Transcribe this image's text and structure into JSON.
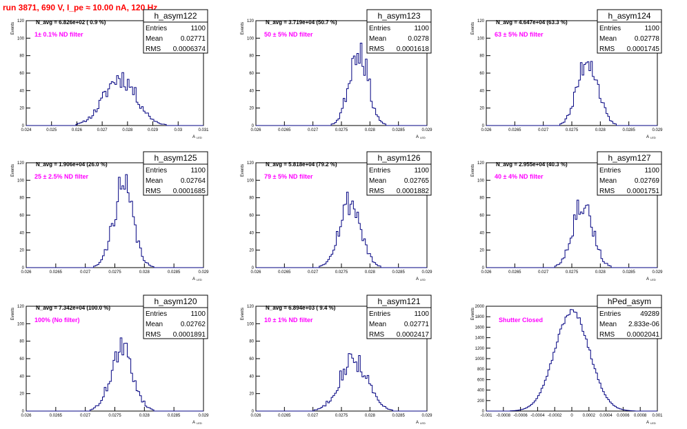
{
  "header": {
    "run_title": "run 3871,   690 V, I_pe ≈ 10.00 nA, 120 Hz"
  },
  "colors": {
    "title": "#ff0000",
    "histogram": "#000080",
    "annotation": "#ff00ff",
    "axis": "#000000"
  },
  "axis_labels": {
    "ylabel": "Events",
    "xlabel_main": "A",
    "xlabel_sub": "LED"
  },
  "chart_data": [
    {
      "type": "bar",
      "name": "h_asym122",
      "nlabel": "N_avg = 6.826e+02 ( 0.9 %)",
      "filter": "1± 0.1% ND filter",
      "stats": [
        [
          "Entries",
          "1100"
        ],
        [
          "Mean",
          "0.02771"
        ],
        [
          "RMS",
          "0.0006374"
        ]
      ],
      "xlim": [
        0.024,
        0.031
      ],
      "xticks": [
        "0.024",
        "0.025",
        "0.026",
        "0.027",
        "0.028",
        "0.029",
        "0.03",
        "0.031"
      ],
      "ylim": [
        0,
        120
      ],
      "yticks": [
        "0",
        "20",
        "40",
        "60",
        "80",
        "100",
        "120"
      ],
      "mean": 0.02771,
      "rms": 0.0006374,
      "peak": 55,
      "seed": 11
    },
    {
      "type": "bar",
      "name": "h_asym123",
      "nlabel": "N_avg = 3.719e+04 (50.7 %)",
      "filter": "50 ± 5% ND filter",
      "stats": [
        [
          "Entries",
          "1100"
        ],
        [
          "Mean",
          "0.0278"
        ],
        [
          "RMS",
          "0.0001618"
        ]
      ],
      "xlim": [
        0.026,
        0.029
      ],
      "xticks": [
        "0.026",
        "0.0265",
        "0.027",
        "0.0275",
        "0.028",
        "0.0285",
        "0.029"
      ],
      "ylim": [
        0,
        120
      ],
      "yticks": [
        "0",
        "20",
        "40",
        "60",
        "80",
        "100",
        "120"
      ],
      "mean": 0.0278,
      "rms": 0.0001618,
      "peak": 90,
      "seed": 23
    },
    {
      "type": "bar",
      "name": "h_asym124",
      "nlabel": "N_avg = 4.647e+04 (63.3 %)",
      "filter": "63 ± 5% ND filter",
      "stats": [
        [
          "Entries",
          "1100"
        ],
        [
          "Mean",
          "0.02778"
        ],
        [
          "RMS",
          "0.0001745"
        ]
      ],
      "xlim": [
        0.026,
        0.029
      ],
      "xticks": [
        "0.026",
        "0.0265",
        "0.027",
        "0.0275",
        "0.028",
        "0.0285",
        "0.029"
      ],
      "ylim": [
        0,
        120
      ],
      "yticks": [
        "0",
        "20",
        "40",
        "60",
        "80",
        "100",
        "120"
      ],
      "mean": 0.02778,
      "rms": 0.0001745,
      "peak": 78,
      "seed": 37
    },
    {
      "type": "bar",
      "name": "h_asym125",
      "nlabel": "N_avg = 1.906e+04 (26.0 %)",
      "filter": "25 ± 2.5% ND filter",
      "stats": [
        [
          "Entries",
          "1100"
        ],
        [
          "Mean",
          "0.02764"
        ],
        [
          "RMS",
          "0.0001685"
        ]
      ],
      "xlim": [
        0.026,
        0.029
      ],
      "xticks": [
        "0.026",
        "0.0265",
        "0.027",
        "0.0275",
        "0.028",
        "0.0285",
        "0.029"
      ],
      "ylim": [
        0,
        120
      ],
      "yticks": [
        "0",
        "20",
        "40",
        "60",
        "80",
        "100",
        "120"
      ],
      "mean": 0.02764,
      "rms": 0.0001685,
      "peak": 92,
      "seed": 41
    },
    {
      "type": "bar",
      "name": "h_asym126",
      "nlabel": "N_avg = 5.818e+04 (79.2 %)",
      "filter": "79 ± 5% ND filter",
      "stats": [
        [
          "Entries",
          "1100"
        ],
        [
          "Mean",
          "0.02765"
        ],
        [
          "RMS",
          "0.0001882"
        ]
      ],
      "xlim": [
        0.026,
        0.029
      ],
      "xticks": [
        "0.026",
        "0.0265",
        "0.027",
        "0.0275",
        "0.028",
        "0.0285",
        "0.029"
      ],
      "ylim": [
        0,
        120
      ],
      "yticks": [
        "0",
        "20",
        "40",
        "60",
        "80",
        "100",
        "120"
      ],
      "mean": 0.02765,
      "rms": 0.0001882,
      "peak": 76,
      "seed": 53
    },
    {
      "type": "bar",
      "name": "h_asym127",
      "nlabel": "N_avg = 2.955e+04 (40.3 %)",
      "filter": "40 ± 4% ND filter",
      "stats": [
        [
          "Entries",
          "1100"
        ],
        [
          "Mean",
          "0.02769"
        ],
        [
          "RMS",
          "0.0001751"
        ]
      ],
      "xlim": [
        0.026,
        0.029
      ],
      "xticks": [
        "0.026",
        "0.0265",
        "0.027",
        "0.0275",
        "0.028",
        "0.0285",
        "0.029"
      ],
      "ylim": [
        0,
        120
      ],
      "yticks": [
        "0",
        "20",
        "40",
        "60",
        "80",
        "100",
        "120"
      ],
      "mean": 0.02769,
      "rms": 0.0001751,
      "peak": 76,
      "seed": 67
    },
    {
      "type": "bar",
      "name": "h_asym120",
      "nlabel": "N_avg = 7.342e+04 (100.0 %)",
      "filter": "100% (No filter)",
      "stats": [
        [
          "Entries",
          "1100"
        ],
        [
          "Mean",
          "0.02762"
        ],
        [
          "RMS",
          "0.0001891"
        ]
      ],
      "xlim": [
        0.026,
        0.029
      ],
      "xticks": [
        "0.026",
        "0.0265",
        "0.027",
        "0.0275",
        "0.028",
        "0.0285",
        "0.029"
      ],
      "ylim": [
        0,
        120
      ],
      "yticks": [
        "0",
        "20",
        "40",
        "60",
        "80",
        "100",
        "120"
      ],
      "mean": 0.02762,
      "rms": 0.0001891,
      "peak": 70,
      "seed": 71
    },
    {
      "type": "bar",
      "name": "h_asym121",
      "nlabel": "N_avg = 6.894e+03 ( 9.4 %)",
      "filter": "10 ± 1% ND filter",
      "stats": [
        [
          "Entries",
          "1100"
        ],
        [
          "Mean",
          "0.02771"
        ],
        [
          "RMS",
          "0.0002417"
        ]
      ],
      "xlim": [
        0.026,
        0.029
      ],
      "xticks": [
        "0.026",
        "0.0265",
        "0.027",
        "0.0275",
        "0.028",
        "0.0285",
        "0.029"
      ],
      "ylim": [
        0,
        120
      ],
      "yticks": [
        "0",
        "20",
        "40",
        "60",
        "80",
        "100",
        "120"
      ],
      "mean": 0.02771,
      "rms": 0.0002417,
      "peak": 60,
      "seed": 83
    },
    {
      "type": "bar",
      "name": "hPed_asym",
      "nlabel": "",
      "filter": "Shutter Closed",
      "stats": [
        [
          "Entries",
          "49289"
        ],
        [
          "Mean",
          "2.833e-06"
        ],
        [
          "RMS",
          "0.0002041"
        ]
      ],
      "xlim": [
        -0.001,
        0.001
      ],
      "xticks": [
        "-0.001",
        "-0.0008",
        "-0.0006",
        "-0.0004",
        "-0.0002",
        "0",
        "0.0002",
        "0.0004",
        "0.0006",
        "0.0008",
        "0.001"
      ],
      "ylim": [
        0,
        2000
      ],
      "yticks": [
        "0",
        "200",
        "400",
        "600",
        "800",
        "1000",
        "1200",
        "1400",
        "1600",
        "1800",
        "2000"
      ],
      "mean": 2.833e-06,
      "rms": 0.0002041,
      "peak": 1900,
      "seed": 97
    }
  ]
}
